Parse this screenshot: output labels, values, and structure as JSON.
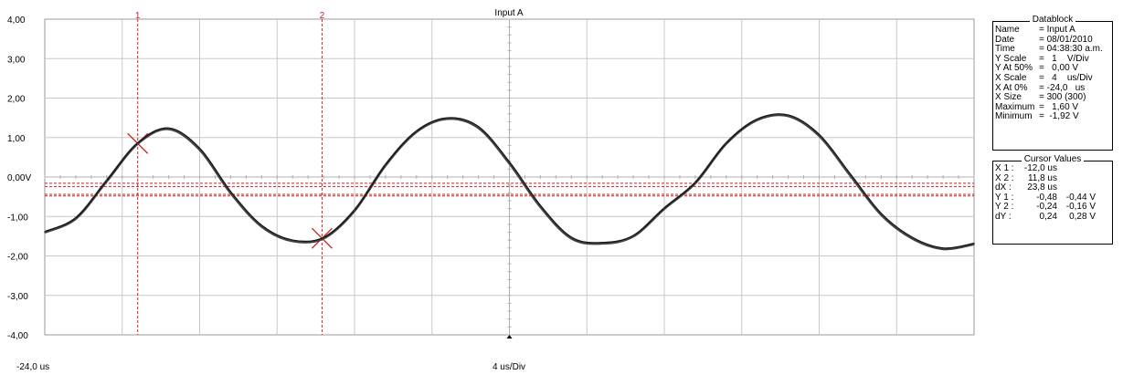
{
  "chart_data": {
    "type": "line",
    "title": "Input A",
    "xlim": [
      -24.0,
      96.0
    ],
    "ylim": [
      -4,
      4
    ],
    "grid": true,
    "x_left_label": "-24,0 us",
    "x_center_label": "4 us/Div",
    "y_ticks": [
      4,
      3,
      2,
      1,
      0,
      -1,
      -2,
      -3,
      -4
    ],
    "y_tick_labels": [
      "4,00",
      "3,00",
      "2,00",
      "1,00",
      "0,00V",
      "-1,00",
      "-2,00",
      "-3,00",
      "-4,00"
    ],
    "series": [
      {
        "color": "#404040",
        "x": [
          -24,
          -20,
          -16,
          -12,
          -8,
          -4,
          0,
          4,
          8,
          12,
          16,
          20,
          24,
          28,
          32,
          36,
          40,
          44,
          48,
          52,
          56,
          60,
          64,
          68,
          72,
          76,
          80,
          84,
          88,
          92,
          96
        ],
        "y": [
          -1.4,
          -1.05,
          -0.1,
          0.85,
          1.22,
          0.7,
          -0.4,
          -1.25,
          -1.62,
          -1.55,
          -0.85,
          0.3,
          1.15,
          1.48,
          1.25,
          0.35,
          -0.75,
          -1.55,
          -1.68,
          -1.5,
          -0.8,
          -0.15,
          0.85,
          1.45,
          1.55,
          1.05,
          0.05,
          -0.95,
          -1.55,
          -1.82,
          -1.7
        ]
      }
    ],
    "cursors": [
      {
        "label": "1",
        "x": -12.0,
        "color": "#cc2222"
      },
      {
        "label": "2",
        "x": 11.8,
        "color": "#cc2222"
      }
    ],
    "h_cursors": [
      -0.48,
      -0.44,
      -0.24,
      -0.16
    ]
  },
  "datablock": {
    "title": "Datablock",
    "rows": [
      {
        "key": "Name",
        "value": "= Input A"
      },
      {
        "key": "Date",
        "value": "= 08/01/2010"
      },
      {
        "key": "Time",
        "value": "= 04:38:30 a.m."
      },
      {
        "key": "Y Scale",
        "value": "=   1    V/Div"
      },
      {
        "key": "Y At 50%",
        "value": "=   0,00 V"
      },
      {
        "key": "X Scale",
        "value": "=   4    us/Div"
      },
      {
        "key": "X At 0%",
        "value": "= -24,0   us"
      },
      {
        "key": "X Size",
        "value": "= 300 (300)"
      },
      {
        "key": "Maximum",
        "value": "=   1,60 V"
      },
      {
        "key": "Minimum",
        "value": "=  -1,92 V"
      }
    ]
  },
  "cursor_values": {
    "title": "Cursor Values",
    "rows": [
      {
        "key": "X 1 :",
        "v1": "-12,0 us",
        "v2": ""
      },
      {
        "key": "X 2 :",
        "v1": "11,8 us",
        "v2": ""
      },
      {
        "key": "dX :",
        "v1": "23,8 us",
        "v2": ""
      },
      {
        "key": "Y 1 :",
        "v1": "-0,48",
        "v2": "-0,44 V"
      },
      {
        "key": "Y 2 :",
        "v1": "-0,24",
        "v2": "-0,16 V"
      },
      {
        "key": "dY :",
        "v1": "0,24",
        "v2": "0,28 V"
      }
    ]
  }
}
